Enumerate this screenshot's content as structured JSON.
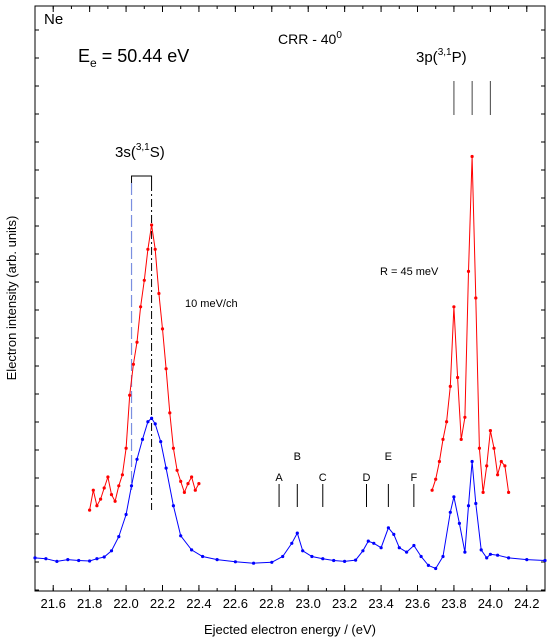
{
  "chart_data": {
    "type": "line",
    "xlabel": "Ejected electron energy / (eV)",
    "ylabel": "Electron intensity (arb. units)",
    "xlim": [
      21.5,
      24.3
    ],
    "ylim": [
      0,
      100
    ],
    "x_ticks": [
      "21.6",
      "21.8",
      "22.0",
      "22.2",
      "22.4",
      "22.6",
      "22.8",
      "23.0",
      "23.2",
      "23.4",
      "23.6",
      "23.8",
      "24.0",
      "24.2"
    ],
    "x_tick_values": [
      21.6,
      21.8,
      22.0,
      22.2,
      22.4,
      22.6,
      22.8,
      23.0,
      23.2,
      23.4,
      23.6,
      23.8,
      24.0,
      24.2
    ],
    "annotations": {
      "species": "Ne",
      "energy_main": "E",
      "energy_sub": "e",
      "energy_rest": " = 50.44 eV",
      "crr_text": "CRR - 40",
      "crr_sup": "0",
      "state_3s_base": "3s(",
      "state_3s_sup": "3,1",
      "state_3s_rest": "S)",
      "state_3p_base": "3p(",
      "state_3p_sup": "3,1",
      "state_3p_rest": "P)",
      "resolution": "R = 45 meV",
      "step": "10 meV/ch"
    },
    "markers": [
      {
        "label": "A",
        "x": 22.84
      },
      {
        "label": "B",
        "x": 22.94
      },
      {
        "label": "C",
        "x": 23.08
      },
      {
        "label": "D",
        "x": 23.32
      },
      {
        "label": "E",
        "x": 23.44
      },
      {
        "label": "F",
        "x": 23.58
      }
    ],
    "p_lines": [
      23.8,
      23.9,
      24.0
    ],
    "series": [
      {
        "color": "#0000ff",
        "x": [
          21.5,
          21.56,
          21.62,
          21.68,
          21.74,
          21.8,
          21.84,
          21.88,
          21.92,
          21.96,
          22.0,
          22.03,
          22.06,
          22.09,
          22.12,
          22.14,
          22.16,
          22.19,
          22.22,
          22.26,
          22.3,
          22.36,
          22.42,
          22.5,
          22.6,
          22.7,
          22.8,
          22.86,
          22.91,
          22.94,
          22.97,
          23.02,
          23.08,
          23.14,
          23.2,
          23.26,
          23.3,
          23.33,
          23.36,
          23.4,
          23.44,
          23.47,
          23.5,
          23.54,
          23.58,
          23.62,
          23.66,
          23.7,
          23.74,
          23.78,
          23.8,
          23.83,
          23.86,
          23.88,
          23.9,
          23.92,
          23.95,
          23.98,
          24.0,
          24.04,
          24.1,
          24.2,
          24.3
        ],
        "y": [
          3.2,
          3.0,
          2.4,
          2.8,
          2.6,
          2.5,
          3.0,
          3.4,
          4.8,
          8.0,
          13.0,
          19.5,
          25.5,
          30.0,
          34.0,
          34.8,
          33.5,
          29.5,
          23.5,
          15.0,
          8.2,
          5.0,
          3.5,
          2.8,
          2.3,
          2.0,
          2.2,
          3.5,
          6.5,
          8.8,
          4.8,
          3.5,
          3.0,
          2.6,
          2.4,
          2.7,
          4.8,
          7.0,
          6.5,
          5.5,
          10.0,
          8.5,
          5.5,
          4.5,
          6.0,
          3.5,
          1.5,
          0.8,
          3.5,
          13.5,
          17.0,
          11.0,
          4.5,
          15.0,
          25.0,
          15.5,
          5.0,
          3.2,
          4.0,
          3.8,
          3.2,
          2.8,
          2.6
        ]
      },
      {
        "color": "#ff0000",
        "x": [
          21.8,
          21.82,
          21.84,
          21.86,
          21.88,
          21.9,
          21.92,
          21.94,
          21.96,
          21.98,
          22.0,
          22.02,
          22.04,
          22.06,
          22.08,
          22.1,
          22.12,
          22.14,
          22.16,
          22.18,
          22.2,
          22.22,
          22.24,
          22.26,
          22.28,
          22.3,
          22.32,
          22.34,
          22.36,
          22.38,
          22.4
        ],
        "y": [
          14.0,
          18.5,
          15.0,
          16.5,
          19.0,
          21.5,
          17.5,
          16.0,
          19.5,
          22.0,
          28.0,
          40.0,
          47.0,
          52.0,
          60.0,
          66.0,
          73.0,
          78.5,
          73.0,
          63.0,
          55.0,
          46.0,
          36.0,
          28.0,
          23.0,
          20.5,
          18.0,
          20.0,
          21.5,
          18.5,
          20.0
        ]
      },
      {
        "color": "#ff0000",
        "x": [
          23.68,
          23.7,
          23.72,
          23.74,
          23.76,
          23.78,
          23.8,
          23.82,
          23.84,
          23.86,
          23.88,
          23.9,
          23.92,
          23.94,
          23.96,
          23.98,
          24.0,
          24.02,
          24.04,
          24.06,
          24.08,
          24.1
        ],
        "y": [
          18.5,
          21.0,
          25.0,
          30.0,
          34.0,
          42.0,
          60.0,
          44.0,
          30.0,
          35.0,
          68.0,
          94.0,
          62.0,
          28.0,
          18.0,
          24.0,
          32.0,
          28.0,
          22.0,
          25.0,
          24.0,
          18.0
        ]
      }
    ]
  }
}
